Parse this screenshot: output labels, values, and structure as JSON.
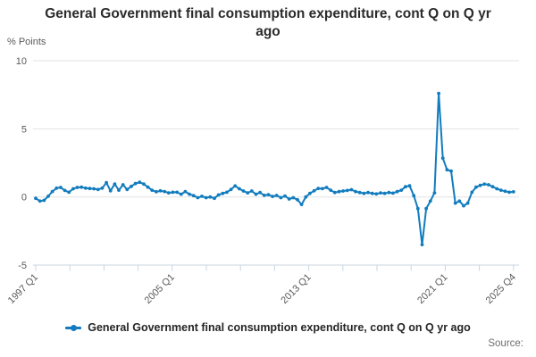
{
  "header": {
    "title": "General Government final consumption expenditure, cont Q on Q yr ago"
  },
  "y_axis": {
    "label": "% Points",
    "ticks": [
      10,
      5,
      0,
      -5
    ],
    "min": -5,
    "max": 10
  },
  "x_axis": {
    "tick_count": 15,
    "labels": [
      {
        "tick": 0,
        "text": "1997 Q1"
      },
      {
        "tick": 4,
        "text": "2005 Q1"
      },
      {
        "tick": 8,
        "text": "2013 Q1"
      },
      {
        "tick": 12,
        "text": "2021 Q1"
      },
      {
        "tick": 14,
        "text": "2025 Q4"
      }
    ]
  },
  "legend": {
    "label": "General Government final consumption expenditure, cont Q on Q yr ago"
  },
  "footer": {
    "source_label": "Source:"
  },
  "colors": {
    "series": "#127cbe",
    "grid": "#e2e2e2",
    "axis": "#c9d6e2",
    "tick_text": "#5a5a5a",
    "title_text": "#2b2b2b",
    "source_text": "#6f6f6f"
  },
  "chart_data": {
    "type": "line",
    "title": "General Government final consumption expenditure, cont Q on Q yr ago",
    "ylabel": "% Points",
    "ylim": [
      -5,
      10
    ],
    "yticks": [
      10,
      5,
      0,
      -5
    ],
    "grid": "horizontal",
    "legend_position": "bottom",
    "x_start": "1997 Q1",
    "x_end": "2025 Q4",
    "frequency": "quarterly",
    "xtick_labels": [
      "1997 Q1",
      "2005 Q1",
      "2013 Q1",
      "2021 Q1",
      "2025 Q4"
    ],
    "series": [
      {
        "name": "General Government final consumption expenditure, cont Q on Q yr ago",
        "values": [
          -0.1,
          -0.3,
          -0.25,
          0.05,
          0.4,
          0.65,
          0.7,
          0.48,
          0.35,
          0.6,
          0.7,
          0.72,
          0.65,
          0.62,
          0.6,
          0.55,
          0.65,
          1.05,
          0.45,
          0.95,
          0.5,
          0.9,
          0.55,
          0.78,
          0.98,
          1.08,
          0.95,
          0.72,
          0.5,
          0.38,
          0.45,
          0.4,
          0.3,
          0.35,
          0.35,
          0.2,
          0.4,
          0.2,
          0.1,
          -0.05,
          0.05,
          -0.05,
          0.0,
          -0.1,
          0.15,
          0.26,
          0.35,
          0.55,
          0.81,
          0.6,
          0.44,
          0.3,
          0.44,
          0.2,
          0.33,
          0.12,
          0.17,
          0.04,
          0.11,
          -0.05,
          0.07,
          -0.15,
          -0.05,
          -0.2,
          -0.55,
          0.0,
          0.26,
          0.45,
          0.63,
          0.61,
          0.7,
          0.5,
          0.33,
          0.39,
          0.44,
          0.48,
          0.54,
          0.39,
          0.33,
          0.26,
          0.33,
          0.26,
          0.22,
          0.3,
          0.26,
          0.33,
          0.28,
          0.39,
          0.5,
          0.75,
          0.82,
          0.1,
          -0.85,
          -3.5,
          -0.85,
          -0.3,
          0.3,
          7.6,
          2.85,
          2.0,
          1.9,
          -0.45,
          -0.3,
          -0.65,
          -0.45,
          0.35,
          0.72,
          0.85,
          0.94,
          0.9,
          0.75,
          0.6,
          0.5,
          0.42,
          0.35,
          0.38
        ]
      }
    ]
  }
}
